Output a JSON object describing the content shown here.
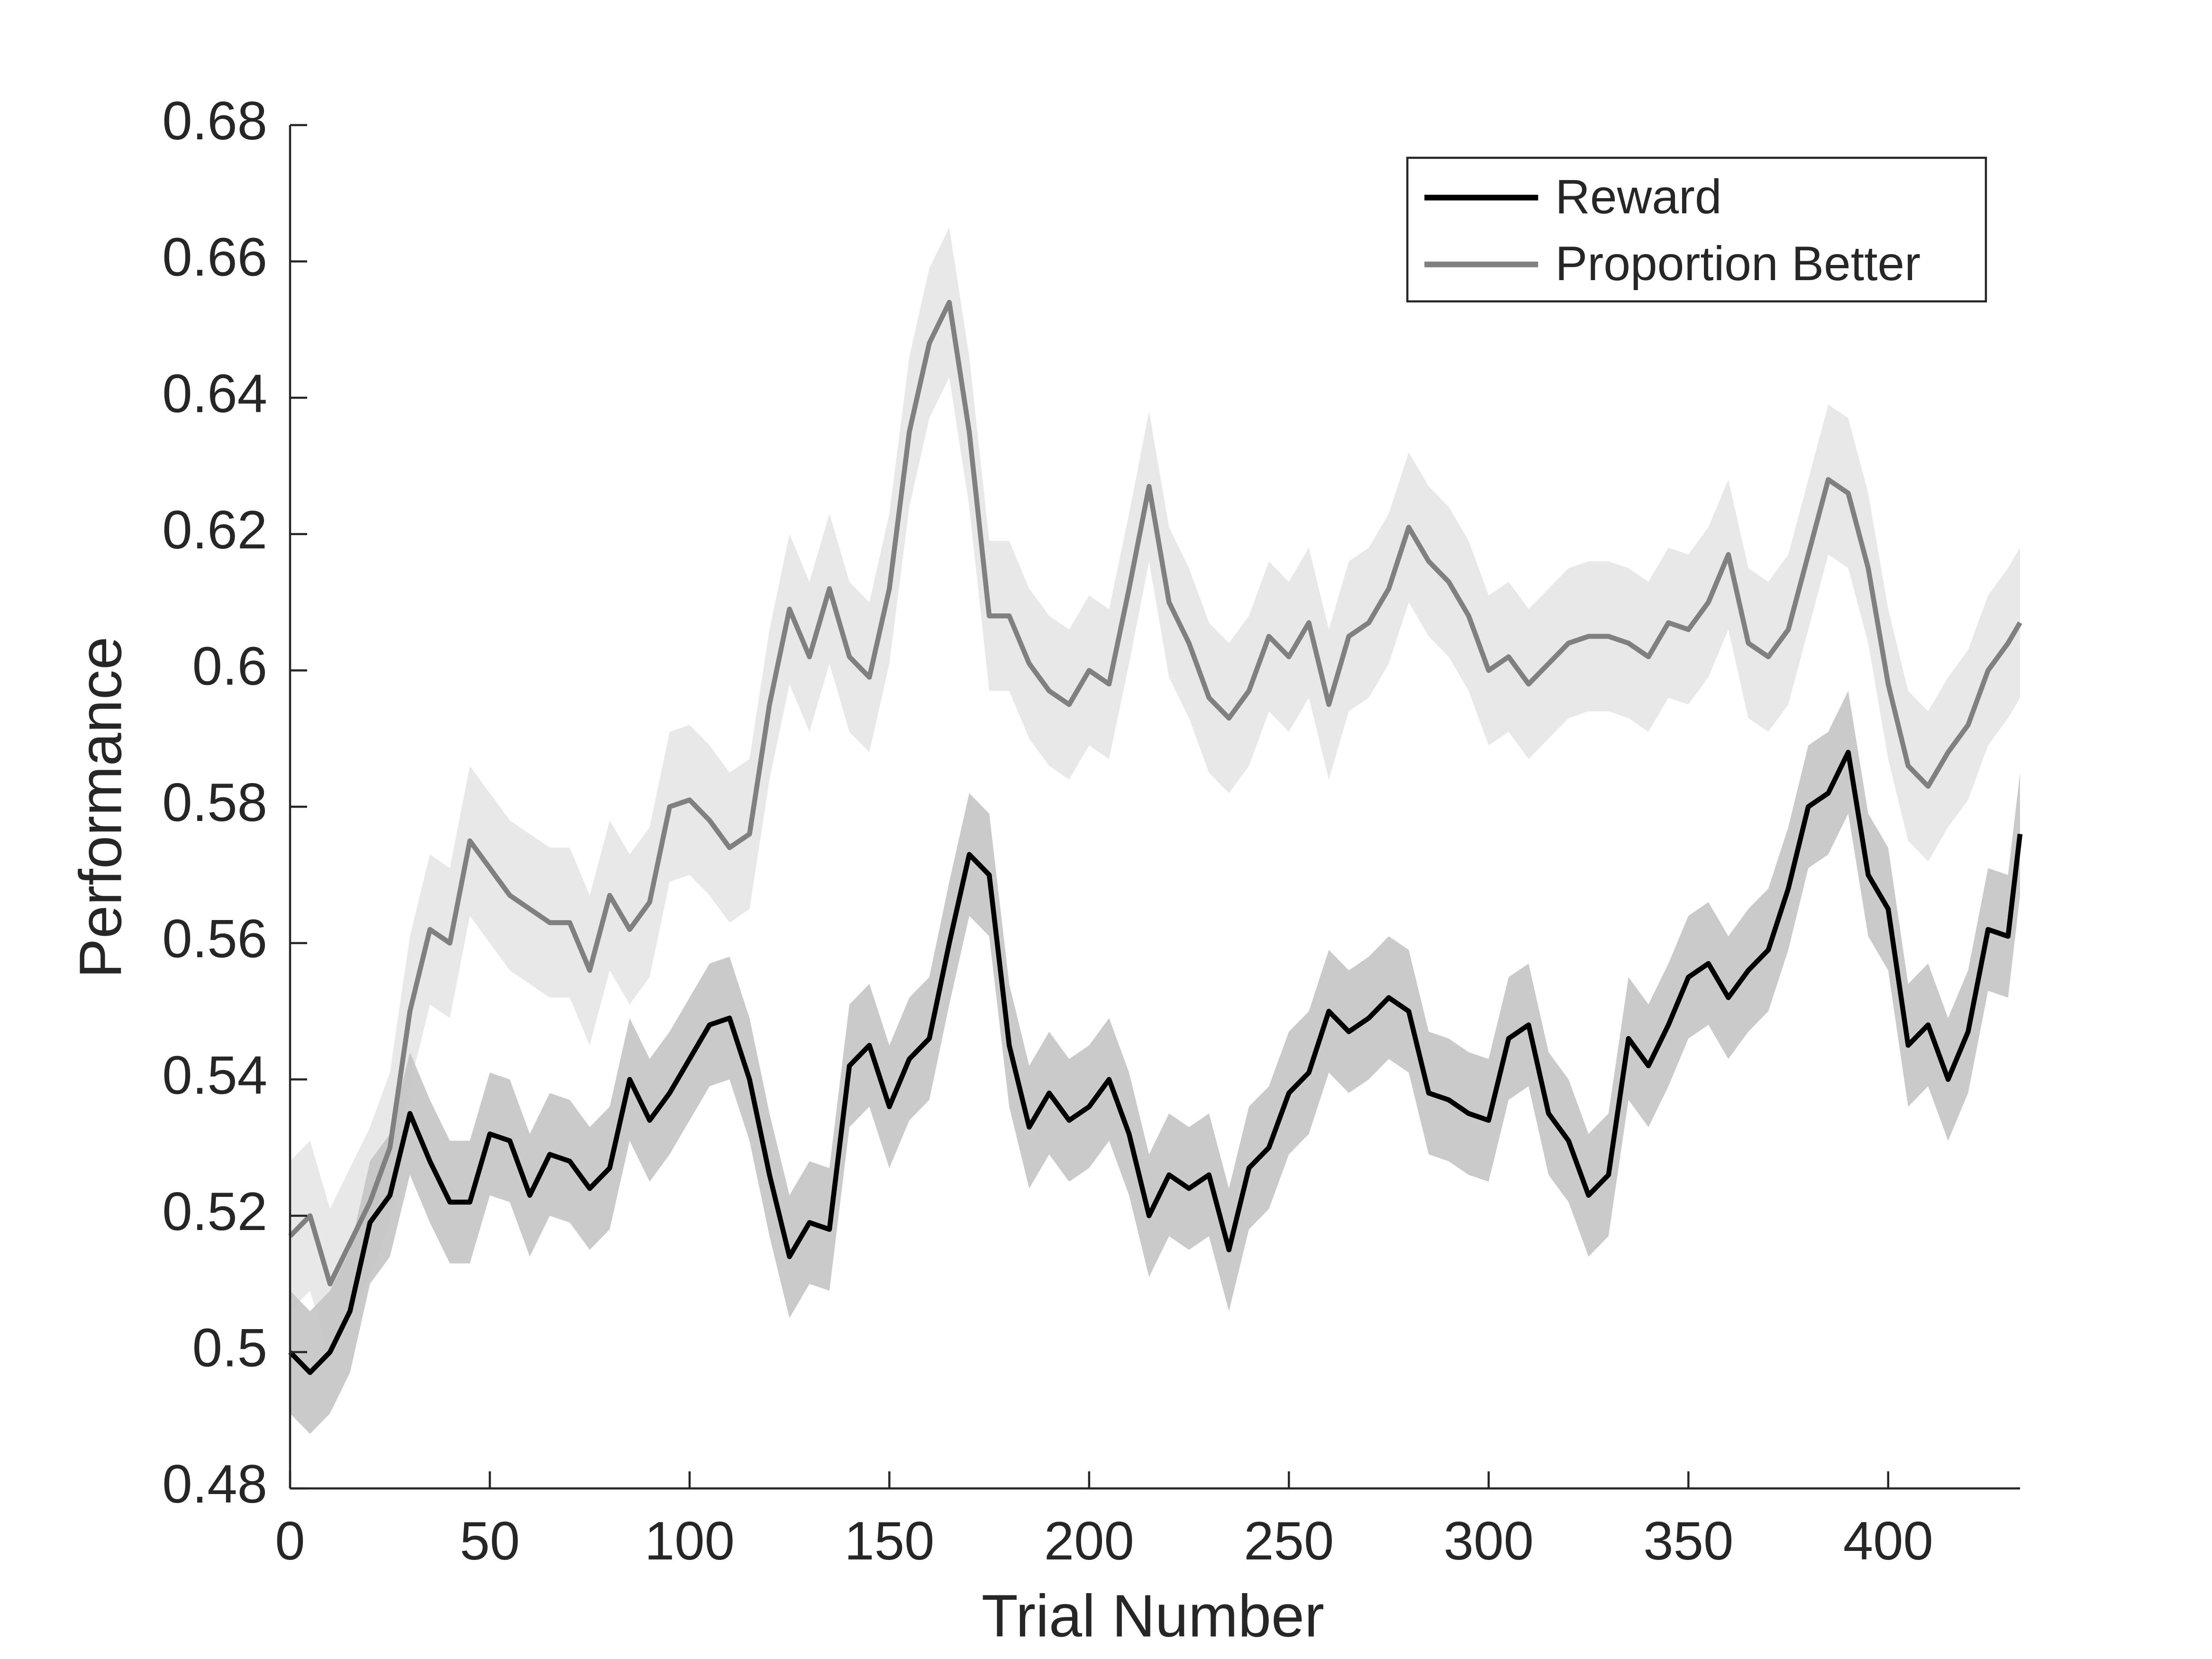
{
  "chart_data": {
    "type": "line",
    "xlabel": "Trial Number",
    "ylabel": "Performance",
    "xlim": [
      0,
      433
    ],
    "ylim": [
      0.48,
      0.68
    ],
    "xticks": [
      0,
      50,
      100,
      150,
      200,
      250,
      300,
      350,
      400
    ],
    "yticks": [
      0.48,
      0.5,
      0.52,
      0.54,
      0.56,
      0.58,
      0.6,
      0.62,
      0.64,
      0.66,
      0.68
    ],
    "legend": "upper right",
    "x": [
      0,
      5,
      10,
      15,
      20,
      25,
      30,
      35,
      40,
      45,
      50,
      55,
      60,
      65,
      70,
      75,
      80,
      85,
      90,
      95,
      100,
      105,
      110,
      115,
      120,
      125,
      130,
      135,
      140,
      145,
      150,
      155,
      160,
      165,
      170,
      175,
      180,
      185,
      190,
      195,
      200,
      205,
      210,
      215,
      220,
      225,
      230,
      235,
      240,
      245,
      250,
      255,
      260,
      265,
      270,
      275,
      280,
      285,
      290,
      295,
      300,
      305,
      310,
      315,
      320,
      325,
      330,
      335,
      340,
      345,
      350,
      355,
      360,
      365,
      370,
      375,
      380,
      385,
      390,
      395,
      400,
      405,
      410,
      415,
      420,
      425,
      430,
      433
    ],
    "series": [
      {
        "name": "Reward",
        "color": "#000000",
        "band_color": "#c4c4c4",
        "error": 0.009,
        "values": [
          0.5,
          0.497,
          0.5,
          0.506,
          0.519,
          0.523,
          0.535,
          0.528,
          0.522,
          0.522,
          0.532,
          0.531,
          0.523,
          0.529,
          0.528,
          0.524,
          0.527,
          0.54,
          0.534,
          0.538,
          0.543,
          0.548,
          0.549,
          0.54,
          0.526,
          0.514,
          0.519,
          0.518,
          0.542,
          0.545,
          0.536,
          0.543,
          0.546,
          0.56,
          0.573,
          0.57,
          0.545,
          0.533,
          0.538,
          0.534,
          0.536,
          0.54,
          0.532,
          0.52,
          0.526,
          0.524,
          0.526,
          0.515,
          0.527,
          0.53,
          0.538,
          0.541,
          0.55,
          0.547,
          0.549,
          0.552,
          0.55,
          0.538,
          0.537,
          0.535,
          0.534,
          0.546,
          0.548,
          0.535,
          0.531,
          0.523,
          0.526,
          0.546,
          0.542,
          0.548,
          0.555,
          0.557,
          0.552,
          0.556,
          0.559,
          0.568,
          0.58,
          0.582,
          0.588,
          0.57,
          0.565,
          0.545,
          0.548,
          0.54,
          0.547,
          0.562,
          0.561,
          0.576
        ]
      },
      {
        "name": "Proportion Better",
        "color": "#808080",
        "band_color": "#e6e6e6",
        "error": 0.011,
        "values": [
          0.517,
          0.52,
          0.51,
          0.516,
          0.522,
          0.53,
          0.55,
          0.562,
          0.56,
          0.575,
          0.571,
          0.567,
          0.565,
          0.563,
          0.563,
          0.556,
          0.567,
          0.562,
          0.566,
          0.58,
          0.581,
          0.578,
          0.574,
          0.576,
          0.595,
          0.609,
          0.602,
          0.612,
          0.602,
          0.599,
          0.612,
          0.635,
          0.648,
          0.654,
          0.635,
          0.608,
          0.608,
          0.601,
          0.597,
          0.595,
          0.6,
          0.598,
          0.612,
          0.627,
          0.61,
          0.604,
          0.596,
          0.593,
          0.597,
          0.605,
          0.602,
          0.607,
          0.595,
          0.605,
          0.607,
          0.612,
          0.621,
          0.616,
          0.613,
          0.608,
          0.6,
          0.602,
          0.598,
          0.601,
          0.604,
          0.605,
          0.605,
          0.604,
          0.602,
          0.607,
          0.606,
          0.61,
          0.617,
          0.604,
          0.602,
          0.606,
          0.617,
          0.628,
          0.626,
          0.615,
          0.598,
          0.586,
          0.583,
          0.588,
          0.592,
          0.6,
          0.604,
          0.607
        ]
      }
    ]
  }
}
